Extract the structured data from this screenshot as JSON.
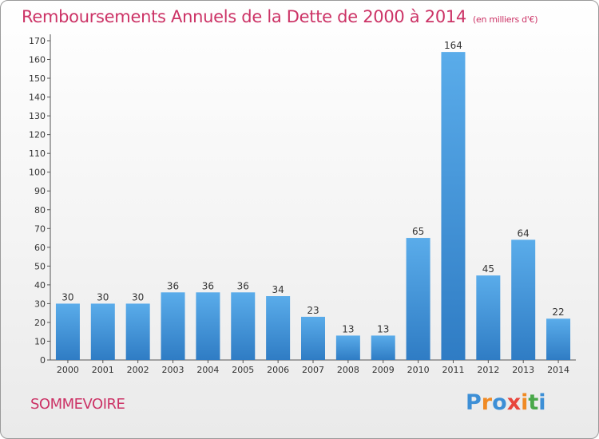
{
  "chart_data": {
    "type": "bar",
    "title": "Remboursements Annuels de la Dette de 2000 à 2014",
    "unit_label": "(en milliers d'€)",
    "categories": [
      "2000",
      "2001",
      "2002",
      "2003",
      "2004",
      "2005",
      "2006",
      "2007",
      "2008",
      "2009",
      "2010",
      "2011",
      "2012",
      "2013",
      "2014"
    ],
    "values": [
      30,
      30,
      30,
      36,
      36,
      36,
      34,
      23,
      13,
      13,
      65,
      164,
      45,
      64,
      22
    ],
    "ylim": [
      0,
      170
    ],
    "yticks": [
      0,
      10,
      20,
      30,
      40,
      50,
      60,
      70,
      80,
      90,
      100,
      110,
      120,
      130,
      140,
      150,
      160,
      170
    ],
    "grid": false,
    "bar_color": "#4a9fe0"
  },
  "commune": "SOMMEVOIRE",
  "logo": {
    "letters": [
      "P",
      "r",
      "o",
      "x",
      "i",
      "t",
      "i"
    ],
    "colors": [
      "#3d8fd6",
      "#f08a24",
      "#3d8fd6",
      "#e8453c",
      "#f08a24",
      "#4aa84a",
      "#3d8fd6"
    ]
  }
}
